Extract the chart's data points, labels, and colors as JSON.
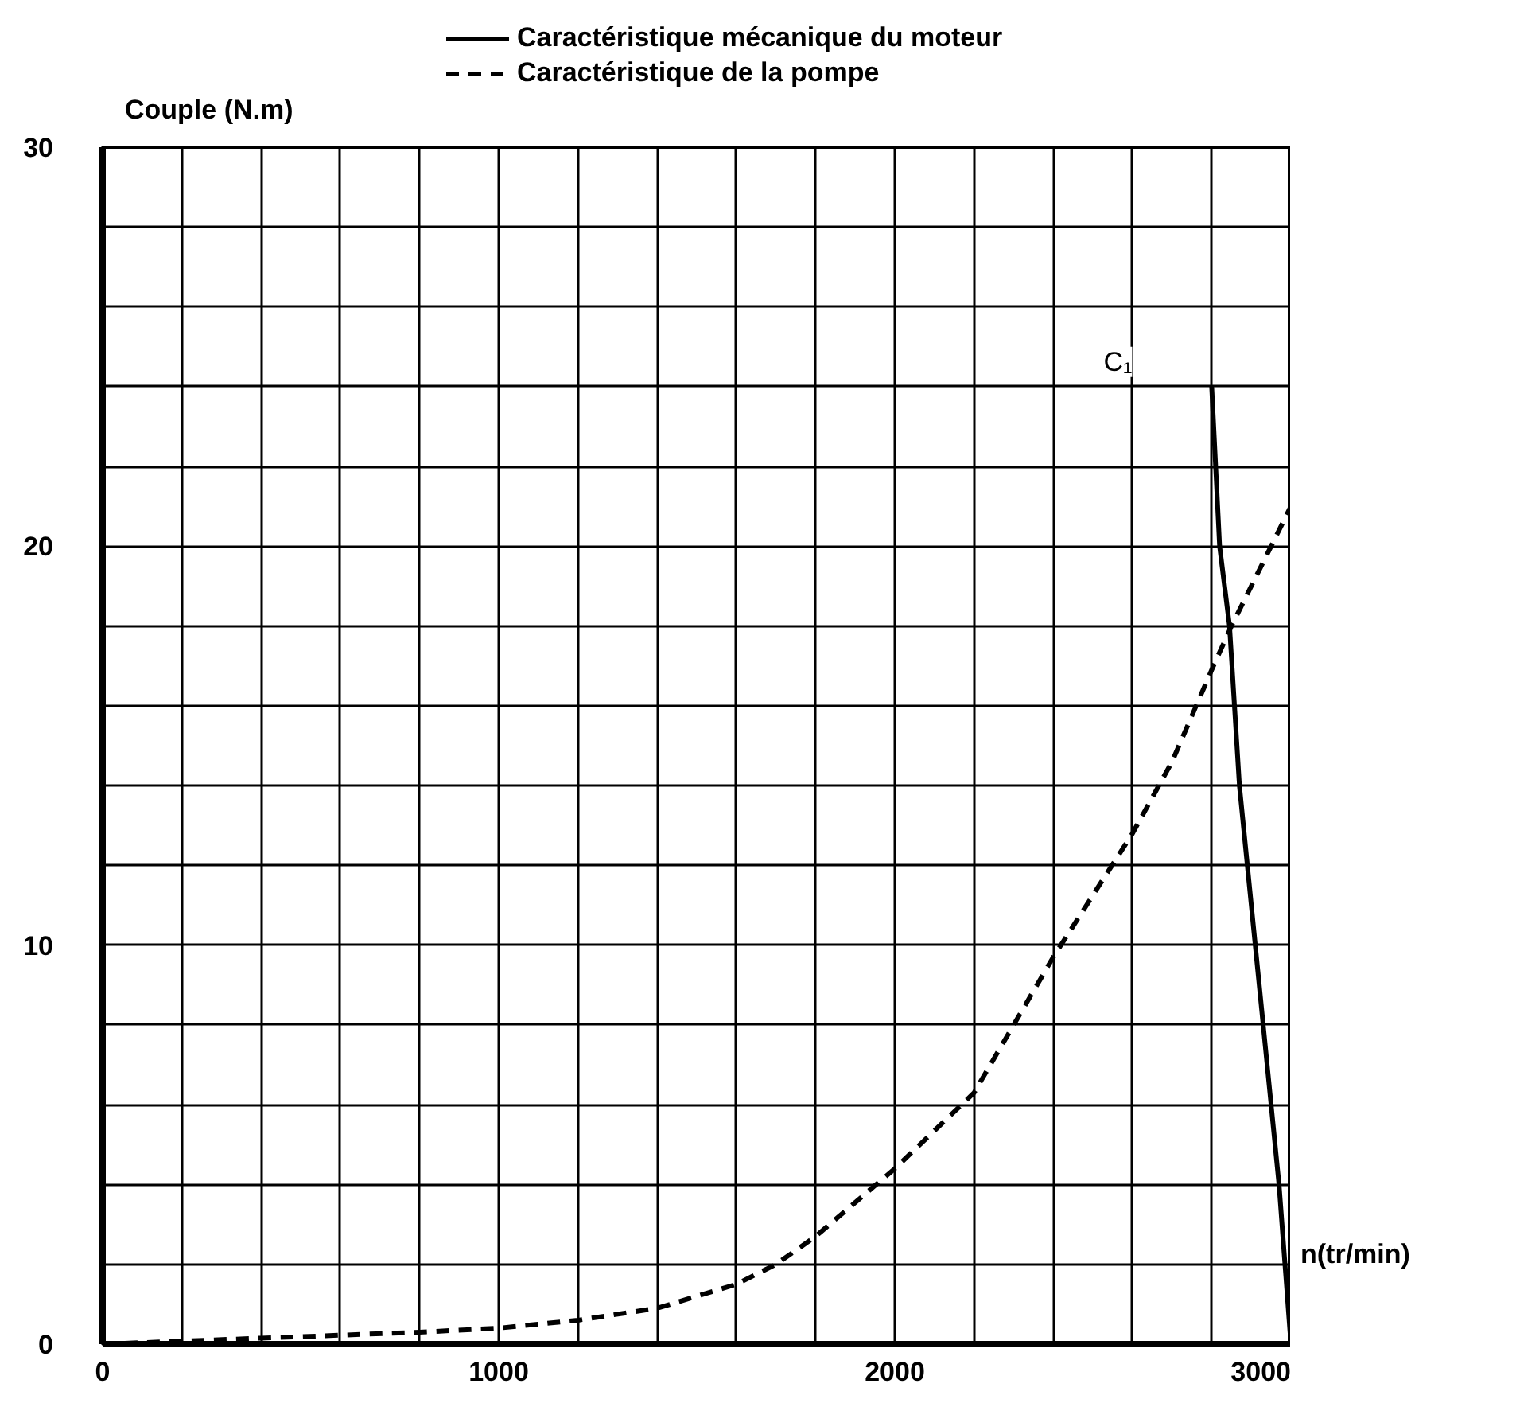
{
  "chart_data": {
    "type": "line",
    "xlabel": "n(tr/min)",
    "ylabel": "Couple (N.m)",
    "annotations": [
      "C₁"
    ],
    "xlim": [
      0,
      3000
    ],
    "ylim": [
      0,
      30
    ],
    "xticks": [
      0,
      {
        "value": 200,
        "label": null
      },
      {
        "value": 400,
        "label": null
      },
      {
        "value": 600,
        "label": null
      },
      {
        "value": 800,
        "label": null
      },
      1000,
      {
        "value": 1200,
        "label": null
      },
      {
        "value": 1400,
        "label": null
      },
      {
        "value": 1600,
        "label": null
      },
      {
        "value": 1800,
        "label": null
      },
      2000,
      {
        "value": 2200,
        "label": null
      },
      {
        "value": 2400,
        "label": null
      },
      {
        "value": 2600,
        "label": null
      },
      {
        "value": 2800,
        "label": null
      },
      3000
    ],
    "yticks": [
      0,
      {
        "value": 2,
        "label": null
      },
      {
        "value": 4,
        "label": null
      },
      {
        "value": 6,
        "label": null
      },
      {
        "value": 8,
        "label": null
      },
      10,
      {
        "value": 12,
        "label": null
      },
      {
        "value": 14,
        "label": null
      },
      {
        "value": 16,
        "label": null
      },
      {
        "value": 18,
        "label": null
      },
      20,
      {
        "value": 22,
        "label": null
      },
      {
        "value": 24,
        "label": null
      },
      {
        "value": 26,
        "label": null
      },
      {
        "value": 28,
        "label": null
      },
      30
    ],
    "grid": true,
    "legend": "top",
    "series": [
      {
        "name": "Caractéristique mécanique du moteur",
        "color": "#000000",
        "line_style": "solid",
        "x": [
          2800,
          2810,
          2820,
          2845,
          2870,
          2890,
          2910,
          2930,
          2950,
          2970,
          2985,
          3000
        ],
        "values": [
          24,
          22,
          20,
          18,
          14,
          12,
          10,
          8,
          6,
          4,
          2,
          0
        ]
      },
      {
        "name": "Caractéristique de la pompe",
        "color": "#000000",
        "line_style": "dashed",
        "x": [
          0,
          400,
          800,
          1000,
          1200,
          1400,
          1600,
          1700,
          1800,
          2000,
          2200,
          2400,
          2600,
          2700,
          2800,
          2850,
          2950,
          3000
        ],
        "values": [
          0,
          0.15,
          0.3,
          0.4,
          0.6,
          0.9,
          1.5,
          2.0,
          2.7,
          4.4,
          6.3,
          9.7,
          12.8,
          14.6,
          16.9,
          18.0,
          20.0,
          21.0
        ]
      }
    ]
  }
}
